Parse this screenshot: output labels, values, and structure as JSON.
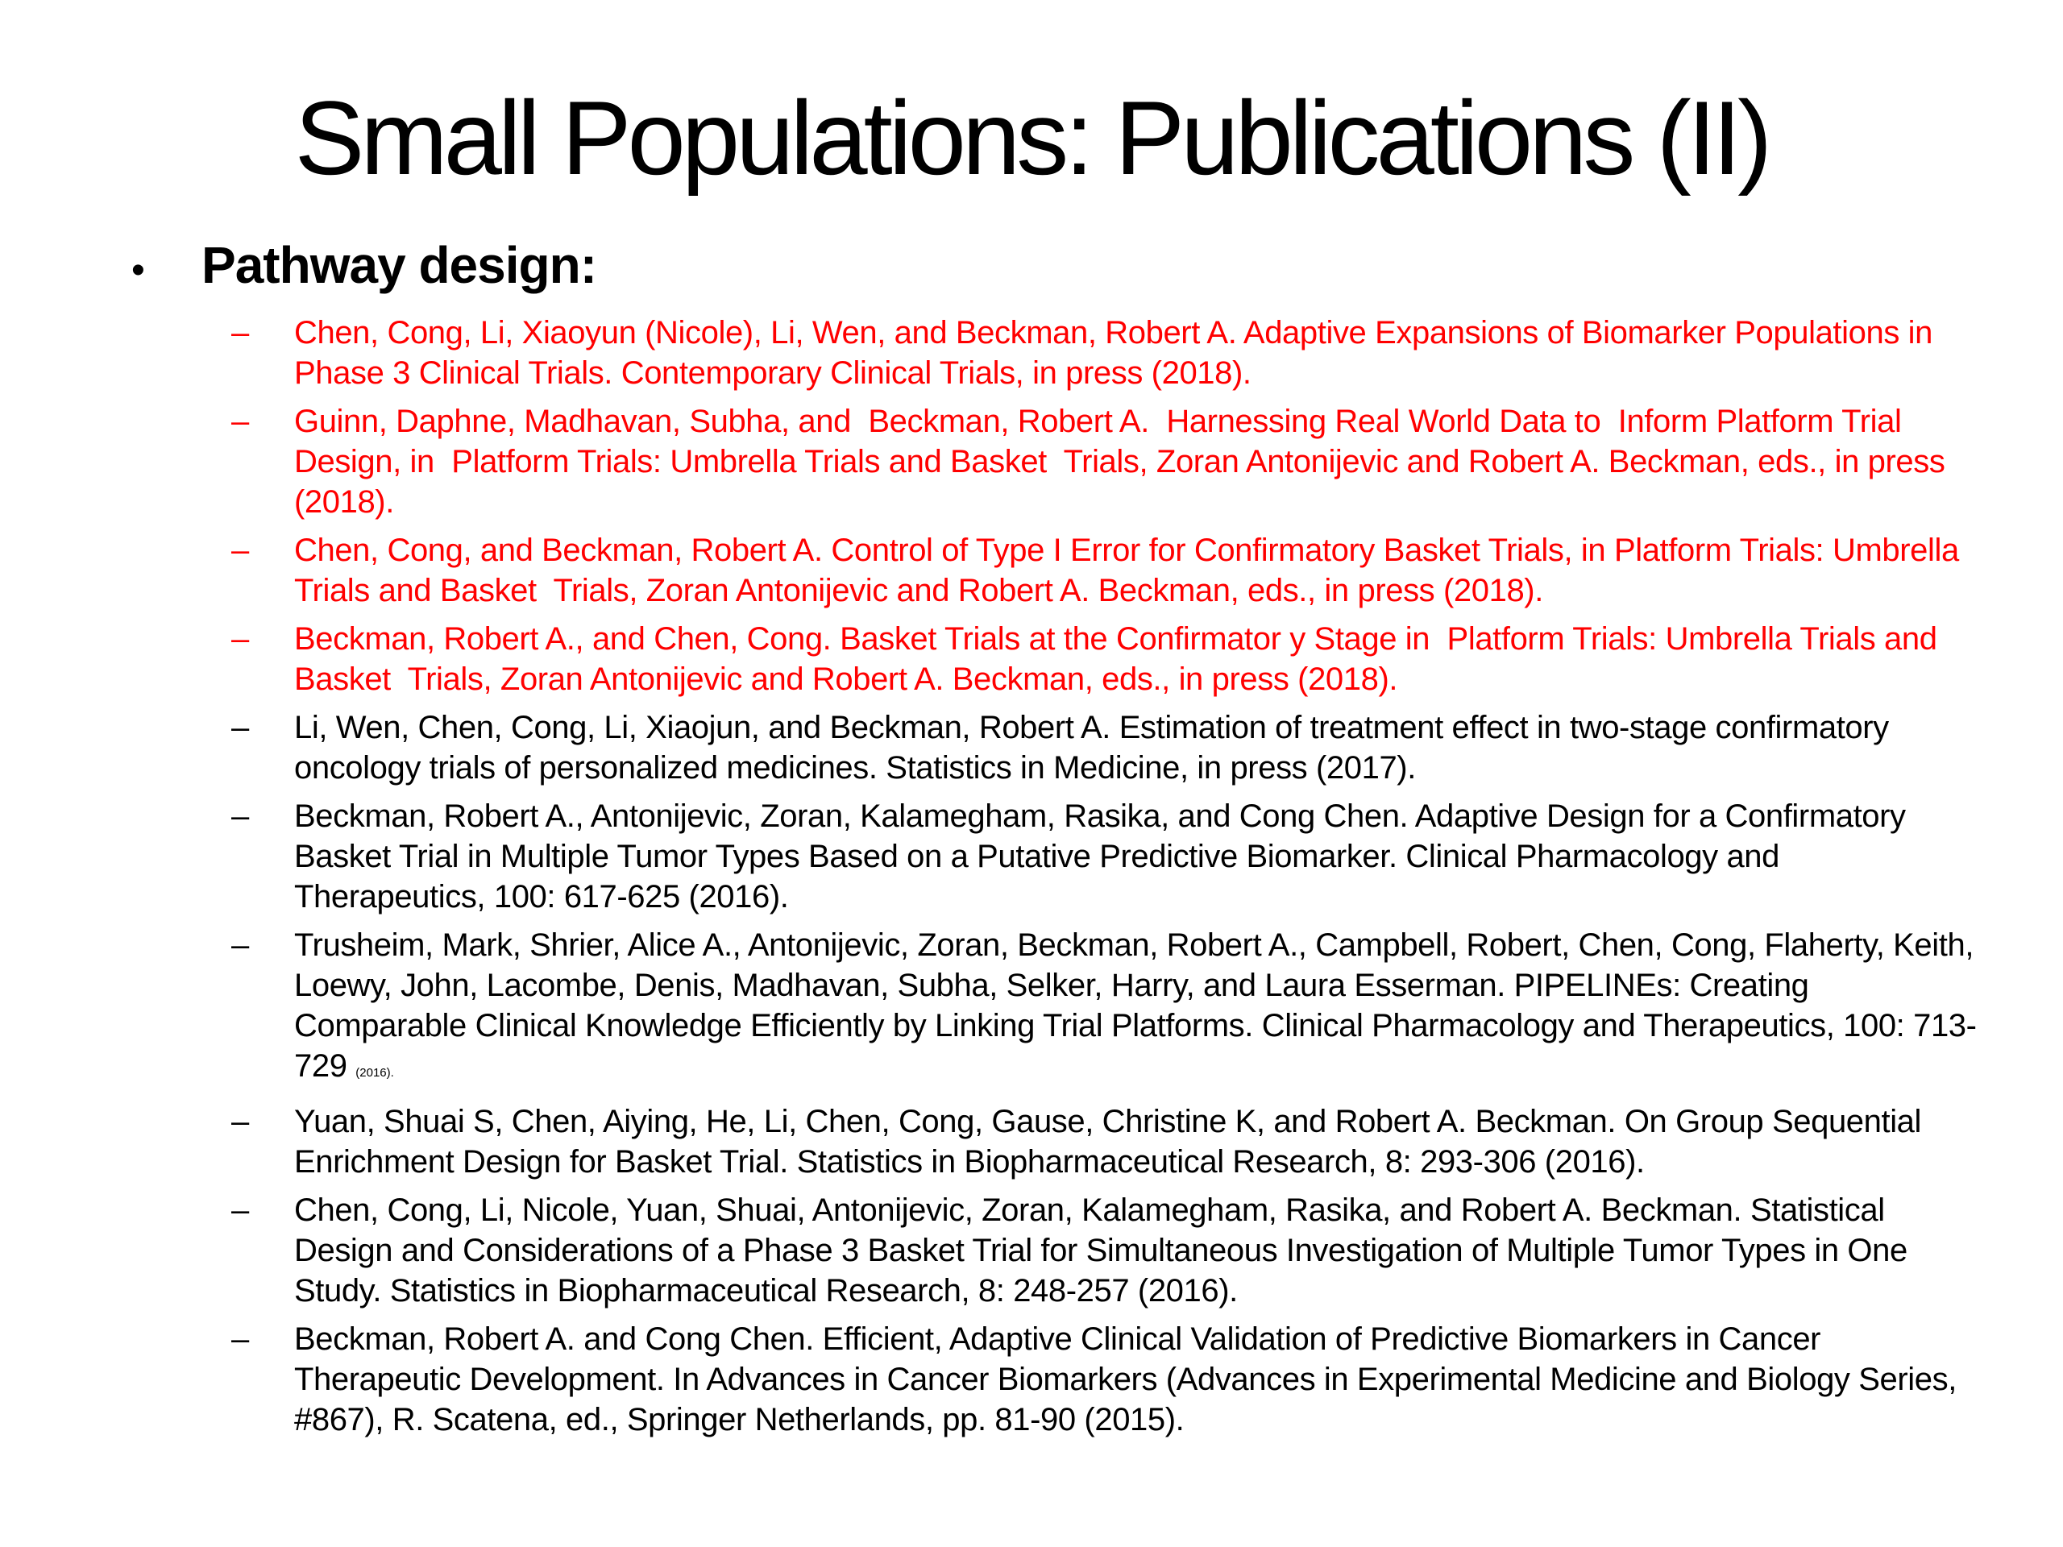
{
  "slide": {
    "title": "Small Populations: Publications (II)",
    "bullet_glyph": "•",
    "dash_glyph": "–",
    "section_label": "Pathway design:",
    "colors": {
      "background": "#FFFFFF",
      "text_black": "#000000",
      "citation_red": "#FF0000"
    },
    "citations": [
      {
        "color": "red",
        "text": "Chen, Cong, Li, Xiaoyun (Nicole), Li, Wen, and Beckman, Robert A. Adaptive Expansions of Biomarker Populations in Phase 3 Clinical Trials. Contemporary Clinical Trials, in press (2018)."
      },
      {
        "color": "red",
        "text": "Guinn, Daphne, Madhavan, Subha, and  Beckman, Robert A.  Harnessing Real World Data to  Inform Platform Trial  Design, in  Platform Trials: Umbrella Trials and Basket  Trials, Zoran Antonijevic and Robert A. Beckman, eds., in press (2018)."
      },
      {
        "color": "red",
        "text": "Chen, Cong, and Beckman, Robert A. Control of Type I Error for Confirmatory Basket Trials, in Platform Trials: Umbrella Trials and Basket  Trials, Zoran Antonijevic and Robert A. Beckman, eds., in press (2018)."
      },
      {
        "color": "red",
        "text": "Beckman, Robert A., and Chen, Cong. Basket Trials at the Confirmator y Stage in  Platform Trials: Umbrella Trials and Basket  Trials, Zoran Antonijevic and Robert A. Beckman, eds., in press (2018)."
      },
      {
        "color": "black",
        "text": "Li, Wen, Chen, Cong, Li, Xiaojun, and Beckman, Robert A. Estimation of treatment effect in two-stage confirmatory oncology trials of personalized medicines. Statistics in Medicine, in press (2017)."
      },
      {
        "color": "black",
        "text": "Beckman, Robert A., Antonijevic, Zoran, Kalamegham, Rasika, and Cong Chen. Adaptive Design for a Confirmatory Basket Trial in Multiple Tumor Types Based on a Putative Predictive Biomarker. Clinical Pharmacology and Therapeutics, 100: 617-625 (2016)."
      },
      {
        "color": "black",
        "text": "Trusheim, Mark, Shrier, Alice A., Antonijevic, Zoran, Beckman, Robert A., Campbell, Robert, Chen, Cong, Flaherty, Keith, Loewy, John, Lacombe, Denis, Madhavan, Subha, Selker, Harry, and Laura Esserman. PIPELINEs: Creating Comparable Clinical Knowledge Efficiently by Linking Trial Platforms. Clinical Pharmacology and Therapeutics, 100: 713-729 ",
        "suffix_small": "(2016)."
      },
      {
        "color": "black",
        "text": "Yuan, Shuai S, Chen, Aiying, He, Li, Chen, Cong, Gause, Christine K, and Robert A. Beckman. On Group Sequential Enrichment Design for Basket Trial. Statistics in Biopharmaceutical Research, 8: 293-306 (2016)."
      },
      {
        "color": "black",
        "text": "Chen, Cong, Li, Nicole, Yuan, Shuai, Antonijevic, Zoran, Kalamegham, Rasika, and Robert A. Beckman. Statistical Design and Considerations of a Phase 3 Basket Trial for Simultaneous Investigation of Multiple Tumor Types in One Study. Statistics in Biopharmaceutical Research, 8: 248-257 (2016)."
      },
      {
        "color": "black",
        "text": "Beckman, Robert A. and Cong Chen. Efficient, Adaptive Clinical Validation of Predictive Biomarkers in Cancer Therapeutic Development. In Advances in Cancer Biomarkers (Advances in Experimental Medicine and Biology Series, #867), R. Scatena, ed., Springer Netherlands, pp. 81-90 (2015)."
      }
    ]
  }
}
